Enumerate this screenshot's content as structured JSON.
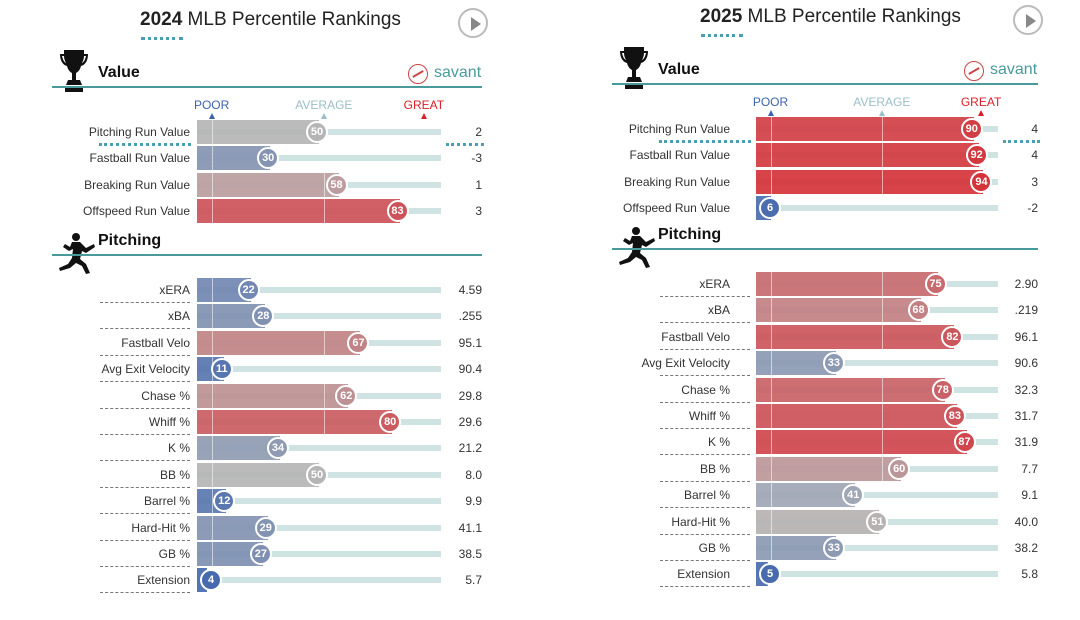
{
  "chart_data": [
    {
      "type": "bar",
      "title": "MLB Percentile Rankings",
      "year": "2024",
      "scale": {
        "poor": "POOR",
        "average": "AVERAGE",
        "great": "GREAT"
      },
      "brand": "savant",
      "sections": [
        {
          "name": "Value",
          "icon": "trophy-icon",
          "rows": [
            {
              "label": "Pitching Run Value",
              "percentile": 50,
              "value": "2"
            },
            {
              "label": "Fastball Run Value",
              "percentile": 30,
              "value": "-3"
            },
            {
              "label": "Breaking Run Value",
              "percentile": 58,
              "value": "1"
            },
            {
              "label": "Offspeed Run Value",
              "percentile": 83,
              "value": "3"
            }
          ]
        },
        {
          "name": "Pitching",
          "icon": "pitcher-icon",
          "rows": [
            {
              "label": "xERA",
              "percentile": 22,
              "value": "4.59"
            },
            {
              "label": "xBA",
              "percentile": 28,
              "value": ".255"
            },
            {
              "label": "Fastball Velo",
              "percentile": 67,
              "value": "95.1"
            },
            {
              "label": "Avg Exit Velocity",
              "percentile": 11,
              "value": "90.4"
            },
            {
              "label": "Chase %",
              "percentile": 62,
              "value": "29.8"
            },
            {
              "label": "Whiff %",
              "percentile": 80,
              "value": "29.6"
            },
            {
              "label": "K %",
              "percentile": 34,
              "value": "21.2"
            },
            {
              "label": "BB %",
              "percentile": 50,
              "value": "8.0"
            },
            {
              "label": "Barrel %",
              "percentile": 12,
              "value": "9.9"
            },
            {
              "label": "Hard-Hit %",
              "percentile": 29,
              "value": "41.1"
            },
            {
              "label": "GB %",
              "percentile": 27,
              "value": "38.5"
            },
            {
              "label": "Extension",
              "percentile": 4,
              "value": "5.7"
            }
          ]
        }
      ]
    },
    {
      "type": "bar",
      "title": "MLB Percentile Rankings",
      "year": "2025",
      "scale": {
        "poor": "POOR",
        "average": "AVERAGE",
        "great": "GREAT"
      },
      "brand": "savant",
      "sections": [
        {
          "name": "Value",
          "icon": "trophy-icon",
          "rows": [
            {
              "label": "Pitching Run Value",
              "percentile": 90,
              "value": "4"
            },
            {
              "label": "Fastball Run Value",
              "percentile": 92,
              "value": "4"
            },
            {
              "label": "Breaking Run Value",
              "percentile": 94,
              "value": "3"
            },
            {
              "label": "Offspeed Run Value",
              "percentile": 6,
              "value": "-2"
            }
          ]
        },
        {
          "name": "Pitching",
          "icon": "pitcher-icon",
          "rows": [
            {
              "label": "xERA",
              "percentile": 75,
              "value": "2.90"
            },
            {
              "label": "xBA",
              "percentile": 68,
              "value": ".219"
            },
            {
              "label": "Fastball Velo",
              "percentile": 82,
              "value": "96.1"
            },
            {
              "label": "Avg Exit Velocity",
              "percentile": 33,
              "value": "90.6"
            },
            {
              "label": "Chase %",
              "percentile": 78,
              "value": "32.3"
            },
            {
              "label": "Whiff %",
              "percentile": 83,
              "value": "31.7"
            },
            {
              "label": "K %",
              "percentile": 87,
              "value": "31.9"
            },
            {
              "label": "BB %",
              "percentile": 60,
              "value": "7.7"
            },
            {
              "label": "Barrel %",
              "percentile": 41,
              "value": "9.1"
            },
            {
              "label": "Hard-Hit %",
              "percentile": 51,
              "value": "40.0"
            },
            {
              "label": "GB %",
              "percentile": 33,
              "value": "38.2"
            },
            {
              "label": "Extension",
              "percentile": 5,
              "value": "5.8"
            }
          ]
        }
      ]
    }
  ],
  "colors": {
    "poor": "#3d63ad",
    "average": "#b5b5b5",
    "great": "#d82129",
    "section_line": "#4a9a9c",
    "track": "#cfe3e3"
  }
}
